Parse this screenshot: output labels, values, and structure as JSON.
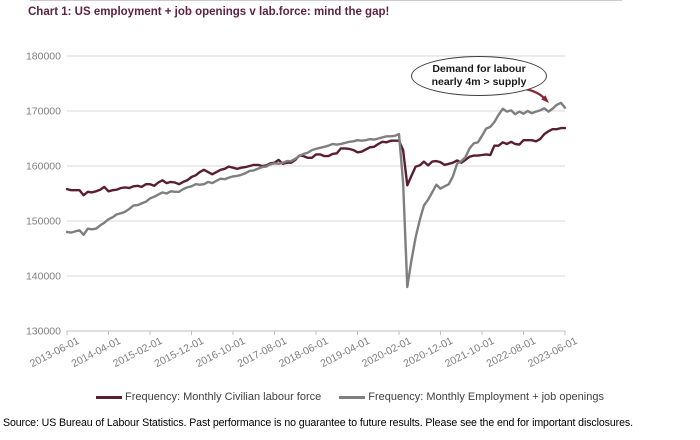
{
  "title": "Chart 1: US employment + job openings v lab.force: mind the gap!",
  "source_note": "Source: US Bureau of Labour Statistics. Past performance is no guarantee to future results. Please see the end for important disclosures.",
  "annotation": {
    "line1": "Demand for labour",
    "line2": "nearly 4m > supply"
  },
  "legend": [
    {
      "label": "Frequency: Monthly Civilian labour force",
      "color": "#5a1e33"
    },
    {
      "label": "Frequency: Monthly Employment + job openings",
      "color": "#7f7f7f"
    }
  ],
  "colors": {
    "title": "#5c2345",
    "series_maroon": "#5a1e33",
    "series_gray": "#7f7f7f",
    "gridline": "#d9d9d9",
    "baseline": "#bfbfbf",
    "axis_text": "#7f7f7f",
    "arrow": "#8c2332",
    "annotation_border": "#3f3f3f"
  },
  "chart_data": {
    "type": "line",
    "title": "Chart 1: US employment + job openings v lab.force: mind the gap!",
    "xlabel": "",
    "ylabel": "",
    "ylim": [
      130000,
      180000
    ],
    "y_ticks": [
      130000,
      140000,
      150000,
      160000,
      170000,
      180000
    ],
    "grid": "horizontal",
    "legend_position": "bottom",
    "x_monthly_start": "2013-06-01",
    "x_monthly_end": "2023-06-01",
    "x_tick_labels": [
      "2013-06-01",
      "2014-04-01",
      "2015-02-01",
      "2015-12-01",
      "2016-10-01",
      "2017-08-01",
      "2018-06-01",
      "2019-04-01",
      "2020-02-01",
      "2020-12-01",
      "2021-10-01",
      "2022-08-01",
      "2023-06-01"
    ],
    "x_tick_month_indexes": [
      0,
      10,
      20,
      30,
      40,
      50,
      60,
      70,
      80,
      90,
      100,
      110,
      120
    ],
    "series": [
      {
        "name": "Frequency: Monthly Civilian labour force",
        "color": "#5a1e33",
        "values": [
          155800,
          155600,
          155600,
          155600,
          154700,
          155300,
          155200,
          155400,
          155700,
          156200,
          155400,
          155600,
          155700,
          156000,
          156100,
          156000,
          156300,
          156400,
          156200,
          156700,
          156700,
          156400,
          157000,
          157400,
          156900,
          157100,
          157000,
          156700,
          157100,
          157400,
          158000,
          158300,
          158900,
          159300,
          158900,
          158500,
          158900,
          159300,
          159500,
          159900,
          159700,
          159500,
          159700,
          159800,
          160000,
          160200,
          160200,
          160000,
          160100,
          160500,
          160600,
          161100,
          160400,
          160600,
          160600,
          161100,
          161900,
          161800,
          161500,
          161500,
          162100,
          162100,
          161800,
          161800,
          162200,
          162300,
          163200,
          163200,
          163100,
          162900,
          162500,
          162600,
          163000,
          163400,
          163500,
          164000,
          164400,
          164300,
          164600,
          164600,
          164600,
          162900,
          156500,
          158200,
          159900,
          160100,
          160800,
          160100,
          160800,
          160900,
          160700,
          160200,
          160400,
          160600,
          161000,
          160600,
          161100,
          161700,
          161900,
          161900,
          162000,
          162100,
          162000,
          163700,
          163700,
          164300,
          164000,
          164400,
          164000,
          163900,
          164700,
          164700,
          164700,
          164500,
          164900,
          165800,
          166300,
          166700,
          166700,
          166900,
          166900
        ]
      },
      {
        "name": "Frequency: Monthly Employment + job openings",
        "color": "#7f7f7f",
        "values": [
          148000,
          147900,
          148100,
          148300,
          147500,
          148600,
          148500,
          148600,
          149200,
          149700,
          150300,
          150700,
          151200,
          151400,
          151700,
          152200,
          152800,
          152900,
          153200,
          153500,
          154100,
          154400,
          154800,
          155200,
          155000,
          155400,
          155300,
          155300,
          155800,
          156100,
          156300,
          156700,
          156600,
          156700,
          157100,
          156900,
          157300,
          157700,
          157600,
          157900,
          158100,
          158200,
          158400,
          158700,
          159100,
          159200,
          159500,
          159800,
          159900,
          160300,
          160500,
          160400,
          160600,
          160900,
          160900,
          161300,
          161800,
          162200,
          162400,
          162900,
          163100,
          163300,
          163500,
          163700,
          164000,
          163900,
          164000,
          164200,
          164400,
          164500,
          164700,
          164600,
          164700,
          164900,
          164800,
          165000,
          165200,
          165400,
          165400,
          165500,
          165800,
          157000,
          138000,
          142800,
          147000,
          150200,
          152800,
          153900,
          155200,
          156600,
          155900,
          156300,
          156700,
          158100,
          160400,
          160900,
          161600,
          163200,
          164100,
          164300,
          165500,
          166800,
          167100,
          168000,
          169300,
          170400,
          169900,
          170100,
          169400,
          169900,
          169500,
          170000,
          169600,
          169900,
          170100,
          170500,
          169900,
          170400,
          171100,
          171500,
          170600
        ]
      }
    ],
    "annotation_text": "Demand for labour nearly 4m > supply"
  }
}
